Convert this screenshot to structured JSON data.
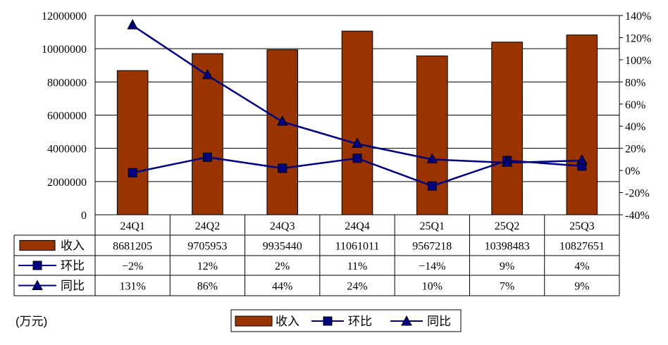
{
  "colors": {
    "bar": "#993300",
    "bar_stroke": "#000000",
    "line": "#000080",
    "marker": "#000080",
    "marker_fill": "#000080",
    "grid": "#000000"
  },
  "unit_note": "(万元)",
  "legend": {
    "items": [
      {
        "label": "收入",
        "shape": "bar-swatch"
      },
      {
        "label": "环比",
        "shape": "square-marker-line"
      },
      {
        "label": "同比",
        "shape": "triangle-marker-line"
      }
    ]
  },
  "chart_data": {
    "type": "bar",
    "categories": [
      "24Q1",
      "24Q2",
      "24Q3",
      "24Q4",
      "25Q1",
      "25Q2",
      "25Q3"
    ],
    "left_axis": {
      "ylim": [
        0,
        12000000
      ],
      "ticks": [
        "0",
        "2000000",
        "4000000",
        "6000000",
        "8000000",
        "10000000",
        "12000000"
      ]
    },
    "right_axis": {
      "ylim": [
        -40,
        140
      ],
      "ticks": [
        "-40%",
        "-20%",
        "0%",
        "20%",
        "40%",
        "60%",
        "80%",
        "100%",
        "120%",
        "140%"
      ]
    },
    "grid": true,
    "series": [
      {
        "name": "收入",
        "kind": "bar",
        "axis": "left",
        "values": [
          8681205,
          9705953,
          9935440,
          11061011,
          9567218,
          10398483,
          10827651
        ],
        "table_labels": [
          "8681205",
          "9705953",
          "9935440",
          "11061011",
          "9567218",
          "10398483",
          "10827651"
        ]
      },
      {
        "name": "环比",
        "kind": "line",
        "marker": "square",
        "axis": "right",
        "values": [
          -2,
          12,
          2,
          11,
          -14,
          9,
          4
        ],
        "table_labels": [
          "−2%",
          "12%",
          "2%",
          "11%",
          "−14%",
          "9%",
          "4%"
        ]
      },
      {
        "name": "同比",
        "kind": "line",
        "marker": "triangle",
        "axis": "right",
        "values": [
          131,
          86,
          44,
          24,
          10,
          7,
          9
        ],
        "table_labels": [
          "131%",
          "86%",
          "44%",
          "24%",
          "10%",
          "7%",
          "9%"
        ]
      }
    ]
  }
}
